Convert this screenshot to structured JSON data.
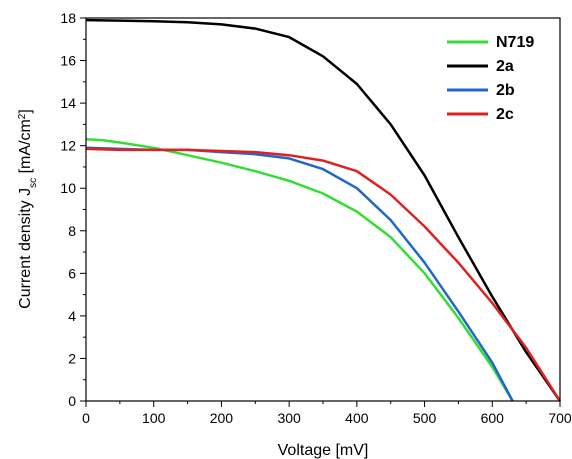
{
  "chart_data": {
    "type": "line",
    "title": "",
    "xlabel": "Voltage  [mV]",
    "ylabel": {
      "prefix": "Current density J",
      "subscript": "sc",
      "suffix": " [mA/cm",
      "superscript": "2",
      "end": "]"
    },
    "xlim": [
      0,
      700
    ],
    "ylim": [
      0,
      18
    ],
    "xticks": [
      0,
      100,
      200,
      300,
      400,
      500,
      600,
      700
    ],
    "yticks": [
      0,
      2,
      4,
      6,
      8,
      10,
      12,
      14,
      16,
      18
    ],
    "grid": false,
    "legend_position": "top-right",
    "series": [
      {
        "name": "N719",
        "color": "#33dd33",
        "points": [
          [
            0,
            12.3
          ],
          [
            25,
            12.25
          ],
          [
            50,
            12.15
          ],
          [
            100,
            11.9
          ],
          [
            150,
            11.55
          ],
          [
            200,
            11.2
          ],
          [
            250,
            10.8
          ],
          [
            300,
            10.35
          ],
          [
            350,
            9.75
          ],
          [
            400,
            8.9
          ],
          [
            450,
            7.7
          ],
          [
            500,
            6.0
          ],
          [
            550,
            3.9
          ],
          [
            600,
            1.6
          ],
          [
            630,
            0.0
          ]
        ]
      },
      {
        "name": "2a",
        "color": "#000000",
        "points": [
          [
            0,
            17.9
          ],
          [
            50,
            17.88
          ],
          [
            100,
            17.85
          ],
          [
            150,
            17.8
          ],
          [
            200,
            17.7
          ],
          [
            250,
            17.5
          ],
          [
            300,
            17.1
          ],
          [
            350,
            16.2
          ],
          [
            400,
            14.9
          ],
          [
            450,
            13.0
          ],
          [
            500,
            10.6
          ],
          [
            550,
            7.7
          ],
          [
            600,
            4.9
          ],
          [
            650,
            2.3
          ],
          [
            700,
            0.0
          ]
        ]
      },
      {
        "name": "2b",
        "color": "#2266cc",
        "points": [
          [
            0,
            11.9
          ],
          [
            50,
            11.85
          ],
          [
            100,
            11.8
          ],
          [
            150,
            11.8
          ],
          [
            200,
            11.7
          ],
          [
            250,
            11.6
          ],
          [
            300,
            11.4
          ],
          [
            350,
            10.9
          ],
          [
            400,
            10.0
          ],
          [
            450,
            8.5
          ],
          [
            500,
            6.5
          ],
          [
            550,
            4.2
          ],
          [
            600,
            1.8
          ],
          [
            630,
            0.0
          ]
        ]
      },
      {
        "name": "2c",
        "color": "#dd2222",
        "points": [
          [
            0,
            11.85
          ],
          [
            50,
            11.8
          ],
          [
            100,
            11.8
          ],
          [
            150,
            11.8
          ],
          [
            200,
            11.75
          ],
          [
            250,
            11.7
          ],
          [
            300,
            11.55
          ],
          [
            350,
            11.3
          ],
          [
            400,
            10.8
          ],
          [
            450,
            9.7
          ],
          [
            500,
            8.2
          ],
          [
            550,
            6.5
          ],
          [
            600,
            4.6
          ],
          [
            650,
            2.5
          ],
          [
            700,
            0.0
          ]
        ]
      }
    ]
  }
}
